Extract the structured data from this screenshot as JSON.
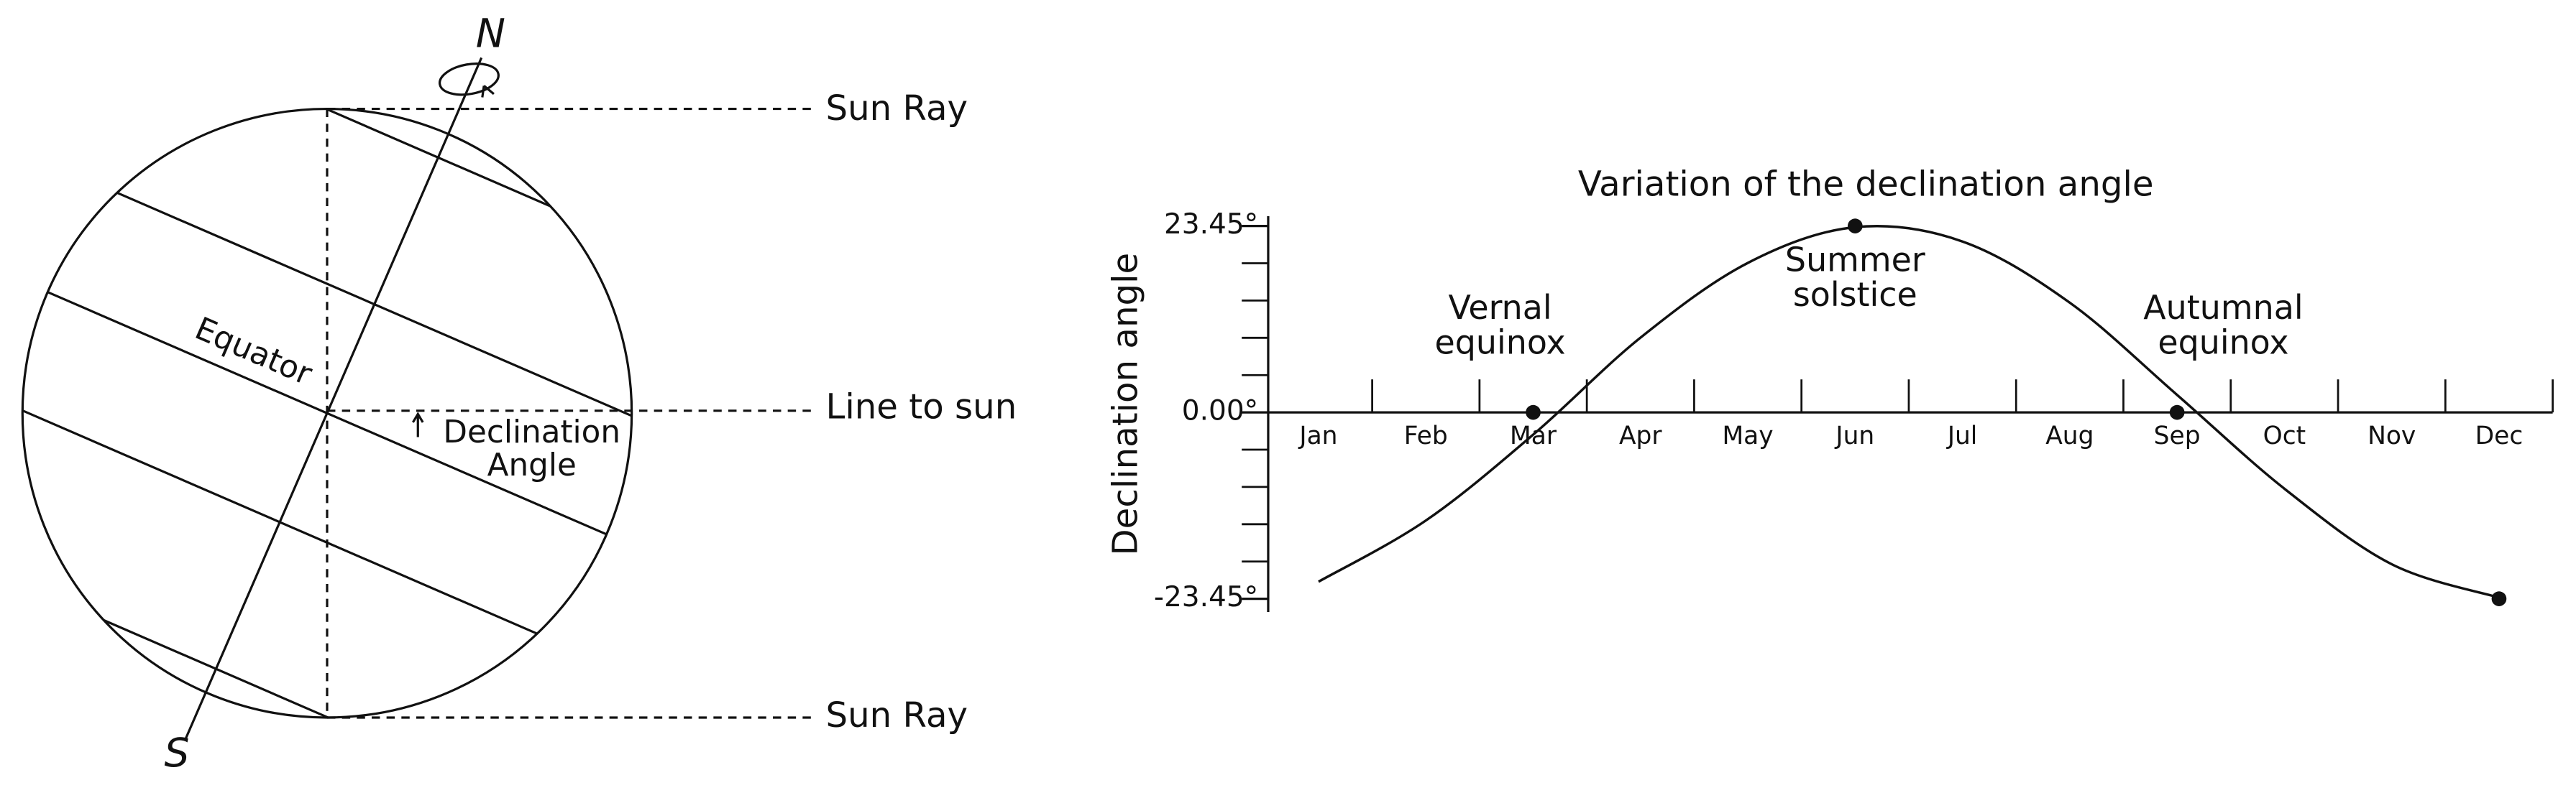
{
  "diagram": {
    "north": "N",
    "south": "S",
    "equator": "Equator",
    "declination": [
      "Declination",
      "Angle"
    ],
    "sun_ray_top": "Sun Ray",
    "line_to_sun": "Line to sun",
    "sun_ray_bottom": "Sun Ray"
  },
  "chart_data": {
    "type": "line",
    "title": "Variation of the declination angle",
    "y_label": "Declination angle",
    "categories": [
      "Jan",
      "Feb",
      "Mar",
      "Apr",
      "May",
      "Jun",
      "Jul",
      "Aug",
      "Sep",
      "Oct",
      "Nov",
      "Dec"
    ],
    "values": [
      -21.3,
      -13.6,
      -2.8,
      9.4,
      18.8,
      23.3,
      21.5,
      13.8,
      2.2,
      -9.6,
      -19.1,
      -23.3
    ],
    "color": "#111111",
    "ylim": [
      -23.45,
      23.45
    ],
    "yticks": [
      {
        "value": -23.45,
        "label": "-23.45°"
      },
      {
        "value": 0,
        "label": "0.00°"
      },
      {
        "value": 23.45,
        "label": "23.45°"
      }
    ],
    "points": {
      "categories": [
        "Mar",
        "Jun",
        "Sep",
        "Dec"
      ],
      "values": [
        0,
        23.45,
        0,
        -23.45
      ]
    },
    "annotations": [
      {
        "text": [
          "Vernal",
          "equinox"
        ]
      },
      {
        "text": [
          "Summer",
          "solstice"
        ]
      },
      {
        "text": [
          "Autumnal",
          "equinox"
        ]
      }
    ]
  }
}
